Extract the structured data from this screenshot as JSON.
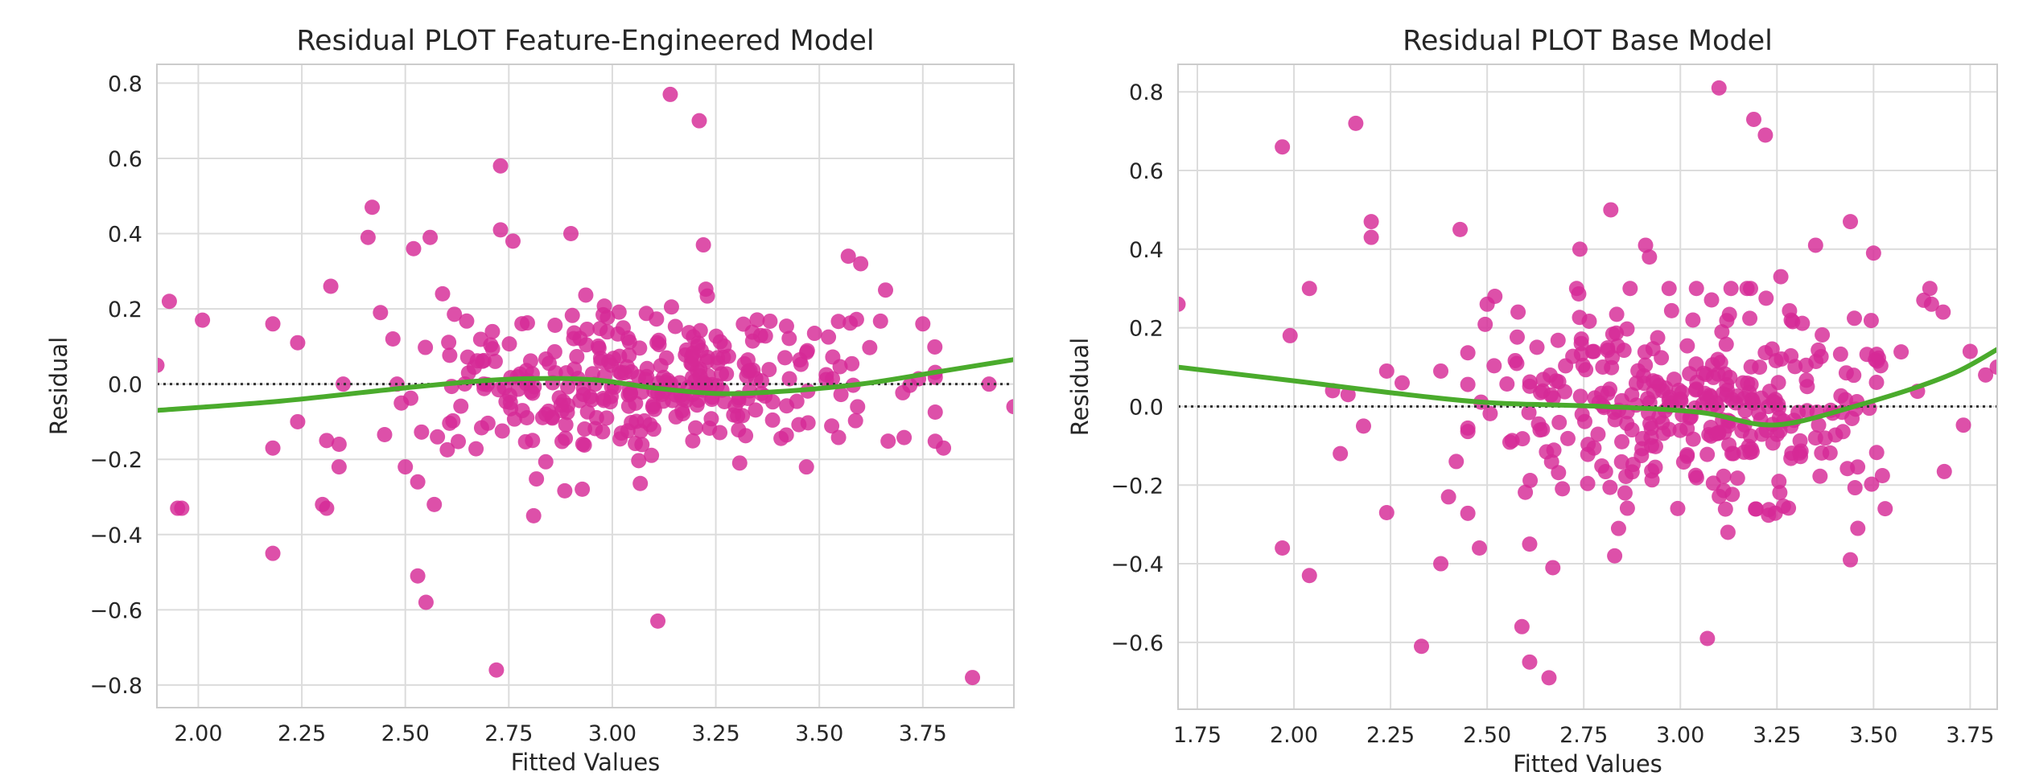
{
  "chart_data": [
    {
      "type": "scatter",
      "title": "Residual PLOT Feature-Engineered Model",
      "xlabel": "Fitted Values",
      "ylabel": "Residual",
      "xlim": [
        1.9,
        3.97
      ],
      "ylim": [
        -0.86,
        0.85
      ],
      "xticks": [
        2.0,
        2.25,
        2.5,
        2.75,
        3.0,
        3.25,
        3.5,
        3.75
      ],
      "xtick_labels": [
        "2.00",
        "2.25",
        "2.50",
        "2.75",
        "3.00",
        "3.25",
        "3.50",
        "3.75"
      ],
      "yticks": [
        0.8,
        0.6,
        0.4,
        0.2,
        0.0,
        -0.2,
        -0.4,
        -0.6,
        -0.8
      ],
      "ytick_labels": [
        "0.8",
        "0.6",
        "0.4",
        "0.2",
        "0.0",
        "−0.2",
        "−0.4",
        "−0.6",
        "−0.8"
      ],
      "grid": true,
      "point_color": "#d62a96",
      "lowess_color": "#4aab2c",
      "reference_line": 0.0,
      "seed": 7,
      "core": {
        "count": 330,
        "x_mean": 3.08,
        "x_sd": 0.27,
        "y_sd": 0.1
      },
      "points": [
        {
          "x": 1.9,
          "y": 0.05
        },
        {
          "x": 1.93,
          "y": 0.22
        },
        {
          "x": 1.95,
          "y": -0.33
        },
        {
          "x": 1.96,
          "y": -0.33
        },
        {
          "x": 2.01,
          "y": 0.17
        },
        {
          "x": 2.18,
          "y": 0.16
        },
        {
          "x": 2.18,
          "y": -0.17
        },
        {
          "x": 2.18,
          "y": -0.45
        },
        {
          "x": 2.24,
          "y": 0.11
        },
        {
          "x": 2.24,
          "y": -0.1
        },
        {
          "x": 2.3,
          "y": -0.32
        },
        {
          "x": 2.31,
          "y": -0.33
        },
        {
          "x": 2.31,
          "y": -0.15
        },
        {
          "x": 2.32,
          "y": 0.26
        },
        {
          "x": 2.34,
          "y": -0.16
        },
        {
          "x": 2.34,
          "y": -0.22
        },
        {
          "x": 2.35,
          "y": 0.0
        },
        {
          "x": 2.41,
          "y": 0.39
        },
        {
          "x": 2.42,
          "y": 0.47
        },
        {
          "x": 2.44,
          "y": 0.19
        },
        {
          "x": 2.47,
          "y": 0.12
        },
        {
          "x": 2.48,
          "y": 0.0
        },
        {
          "x": 2.5,
          "y": -0.22
        },
        {
          "x": 2.52,
          "y": 0.36
        },
        {
          "x": 2.53,
          "y": -0.26
        },
        {
          "x": 2.53,
          "y": -0.51
        },
        {
          "x": 2.55,
          "y": -0.58
        },
        {
          "x": 2.56,
          "y": 0.39
        },
        {
          "x": 2.57,
          "y": -0.32
        },
        {
          "x": 2.59,
          "y": 0.24
        },
        {
          "x": 2.72,
          "y": -0.76
        },
        {
          "x": 2.73,
          "y": 0.58
        },
        {
          "x": 2.73,
          "y": 0.41
        },
        {
          "x": 2.76,
          "y": 0.38
        },
        {
          "x": 2.81,
          "y": -0.35
        },
        {
          "x": 2.9,
          "y": 0.4
        },
        {
          "x": 3.11,
          "y": -0.63
        },
        {
          "x": 3.14,
          "y": 0.77
        },
        {
          "x": 3.21,
          "y": 0.7
        },
        {
          "x": 3.22,
          "y": 0.37
        },
        {
          "x": 3.57,
          "y": 0.34
        },
        {
          "x": 3.6,
          "y": 0.32
        },
        {
          "x": 3.66,
          "y": 0.25
        },
        {
          "x": 3.75,
          "y": 0.16
        },
        {
          "x": 3.8,
          "y": -0.17
        },
        {
          "x": 3.87,
          "y": -0.78
        },
        {
          "x": 3.91,
          "y": 0.0
        },
        {
          "x": 3.97,
          "y": -0.06
        }
      ],
      "lowess": [
        {
          "x": 1.9,
          "y": -0.07
        },
        {
          "x": 2.2,
          "y": -0.045
        },
        {
          "x": 2.5,
          "y": -0.01
        },
        {
          "x": 2.7,
          "y": 0.01
        },
        {
          "x": 2.85,
          "y": 0.015
        },
        {
          "x": 2.97,
          "y": 0.01
        },
        {
          "x": 3.1,
          "y": -0.01
        },
        {
          "x": 3.25,
          "y": -0.025
        },
        {
          "x": 3.4,
          "y": -0.02
        },
        {
          "x": 3.6,
          "y": 0.0
        },
        {
          "x": 3.8,
          "y": 0.035
        },
        {
          "x": 3.97,
          "y": 0.065
        }
      ]
    },
    {
      "type": "scatter",
      "title": "Residual PLOT Base Model",
      "xlabel": "Fitted Values",
      "ylabel": "Residual",
      "xlim": [
        1.7,
        3.82
      ],
      "ylim": [
        -0.77,
        0.87
      ],
      "xticks": [
        1.75,
        2.0,
        2.25,
        2.5,
        2.75,
        3.0,
        3.25,
        3.5,
        3.75
      ],
      "xtick_labels": [
        "1.75",
        "2.00",
        "2.25",
        "2.50",
        "2.75",
        "3.00",
        "3.25",
        "3.50",
        "3.75"
      ],
      "yticks": [
        0.8,
        0.6,
        0.4,
        0.2,
        0.0,
        -0.2,
        -0.4,
        -0.6
      ],
      "ytick_labels": [
        "0.8",
        "0.6",
        "0.4",
        "0.2",
        "0.0",
        "−0.2",
        "−0.4",
        "−0.6"
      ],
      "grid": true,
      "point_color": "#d62a96",
      "lowess_color": "#4aab2c",
      "reference_line": 0.0,
      "seed": 13,
      "core": {
        "count": 340,
        "x_mean": 3.05,
        "x_sd": 0.27,
        "y_sd": 0.13
      },
      "points": [
        {
          "x": 1.7,
          "y": 0.26
        },
        {
          "x": 1.97,
          "y": 0.66
        },
        {
          "x": 1.97,
          "y": -0.36
        },
        {
          "x": 1.99,
          "y": 0.18
        },
        {
          "x": 2.04,
          "y": 0.3
        },
        {
          "x": 2.04,
          "y": -0.43
        },
        {
          "x": 2.1,
          "y": 0.04
        },
        {
          "x": 2.12,
          "y": -0.12
        },
        {
          "x": 2.14,
          "y": 0.03
        },
        {
          "x": 2.16,
          "y": 0.72
        },
        {
          "x": 2.18,
          "y": -0.05
        },
        {
          "x": 2.2,
          "y": 0.47
        },
        {
          "x": 2.2,
          "y": 0.43
        },
        {
          "x": 2.24,
          "y": 0.09
        },
        {
          "x": 2.24,
          "y": -0.27
        },
        {
          "x": 2.28,
          "y": 0.06
        },
        {
          "x": 2.33,
          "y": -0.61
        },
        {
          "x": 2.38,
          "y": 0.09
        },
        {
          "x": 2.38,
          "y": -0.4
        },
        {
          "x": 2.4,
          "y": -0.23
        },
        {
          "x": 2.42,
          "y": -0.14
        },
        {
          "x": 2.43,
          "y": 0.45
        },
        {
          "x": 2.48,
          "y": -0.36
        },
        {
          "x": 2.5,
          "y": 0.26
        },
        {
          "x": 2.52,
          "y": 0.28
        },
        {
          "x": 2.58,
          "y": 0.24
        },
        {
          "x": 2.59,
          "y": -0.56
        },
        {
          "x": 2.61,
          "y": -0.65
        },
        {
          "x": 2.61,
          "y": -0.35
        },
        {
          "x": 2.66,
          "y": -0.69
        },
        {
          "x": 2.67,
          "y": -0.41
        },
        {
          "x": 2.74,
          "y": 0.4
        },
        {
          "x": 2.82,
          "y": 0.5
        },
        {
          "x": 2.83,
          "y": -0.38
        },
        {
          "x": 2.87,
          "y": 0.3
        },
        {
          "x": 2.91,
          "y": 0.41
        },
        {
          "x": 2.92,
          "y": 0.38
        },
        {
          "x": 3.07,
          "y": -0.59
        },
        {
          "x": 3.1,
          "y": 0.81
        },
        {
          "x": 3.19,
          "y": 0.73
        },
        {
          "x": 3.22,
          "y": 0.69
        },
        {
          "x": 3.26,
          "y": 0.33
        },
        {
          "x": 3.35,
          "y": 0.41
        },
        {
          "x": 3.44,
          "y": 0.47
        },
        {
          "x": 3.44,
          "y": -0.39
        },
        {
          "x": 3.5,
          "y": 0.39
        },
        {
          "x": 3.53,
          "y": -0.26
        },
        {
          "x": 3.63,
          "y": 0.27
        },
        {
          "x": 3.65,
          "y": 0.26
        },
        {
          "x": 3.68,
          "y": 0.24
        },
        {
          "x": 3.75,
          "y": 0.14
        },
        {
          "x": 3.79,
          "y": 0.08
        },
        {
          "x": 3.82,
          "y": 0.1
        }
      ],
      "lowess": [
        {
          "x": 1.7,
          "y": 0.1
        },
        {
          "x": 2.0,
          "y": 0.065
        },
        {
          "x": 2.25,
          "y": 0.035
        },
        {
          "x": 2.5,
          "y": 0.01
        },
        {
          "x": 2.8,
          "y": 0.0
        },
        {
          "x": 3.05,
          "y": -0.015
        },
        {
          "x": 3.2,
          "y": -0.045
        },
        {
          "x": 3.3,
          "y": -0.04
        },
        {
          "x": 3.45,
          "y": 0.0
        },
        {
          "x": 3.6,
          "y": 0.045
        },
        {
          "x": 3.72,
          "y": 0.09
        },
        {
          "x": 3.82,
          "y": 0.145
        }
      ]
    }
  ]
}
